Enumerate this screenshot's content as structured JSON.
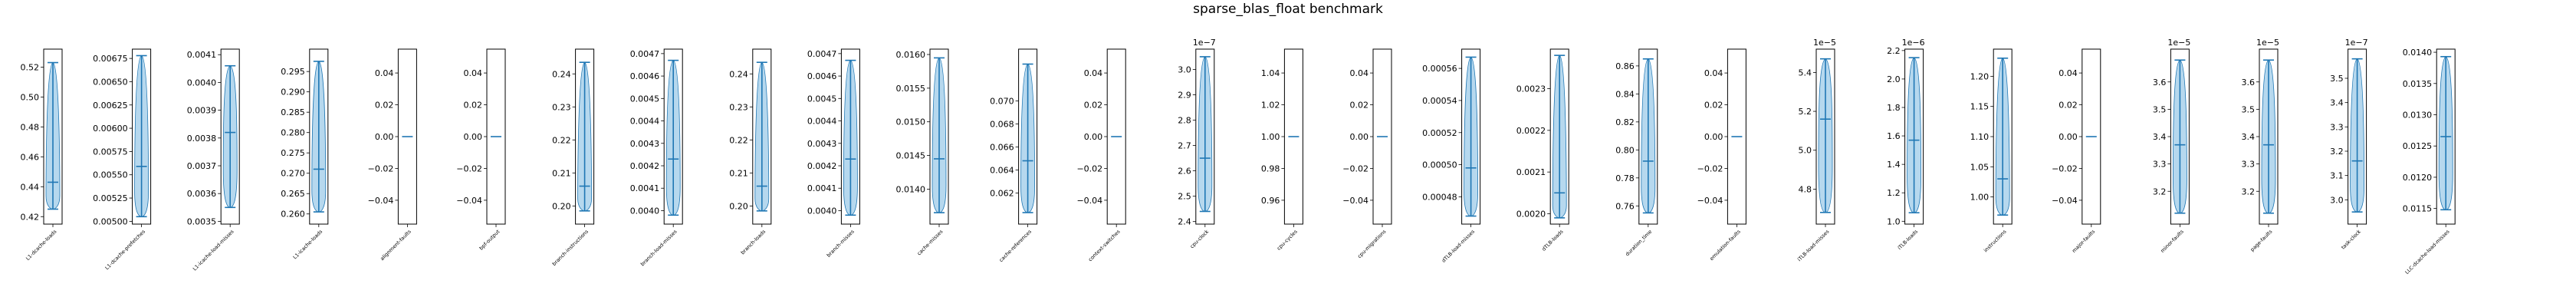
{
  "figure_title": "sparse_blas_float benchmark",
  "colors": {
    "violin_fill": "#aed4ec",
    "violin_edge": "#1f77b4",
    "line": "#1f77b4",
    "axes": "#000000"
  },
  "chart_data": [
    {
      "type": "violin",
      "label": "L1-dcache-loads",
      "ylim": [
        0.415,
        0.532
      ],
      "ticks": [
        0.42,
        0.44,
        0.46,
        0.48,
        0.5,
        0.52
      ],
      "tick_labels": [
        "0.42",
        "0.44",
        "0.46",
        "0.48",
        "0.50",
        "0.52"
      ],
      "exponent": "",
      "min": 0.425,
      "max": 0.523,
      "median": 0.443
    },
    {
      "type": "violin",
      "label": "L1-dcache-prefetches",
      "ylim": [
        0.00497,
        0.00685
      ],
      "ticks": [
        0.005,
        0.00525,
        0.0055,
        0.00575,
        0.006,
        0.00625,
        0.0065,
        0.00675
      ],
      "tick_labels": [
        "0.00500",
        "0.00525",
        "0.00550",
        "0.00575",
        "0.00600",
        "0.00625",
        "0.00650",
        "0.00675"
      ],
      "exponent": "",
      "min": 0.00505,
      "max": 0.00678,
      "median": 0.00559
    },
    {
      "type": "violin",
      "label": "L1-icache-load-misses",
      "ylim": [
        0.00349,
        0.00412
      ],
      "ticks": [
        0.0035,
        0.0036,
        0.0037,
        0.0038,
        0.0039,
        0.004,
        0.0041
      ],
      "tick_labels": [
        "0.0035",
        "0.0036",
        "0.0037",
        "0.0038",
        "0.0039",
        "0.0040",
        "0.0041"
      ],
      "exponent": "",
      "min": 0.00355,
      "max": 0.00406,
      "median": 0.00382
    },
    {
      "type": "violin",
      "label": "L1-icache-loads",
      "ylim": [
        0.2575,
        0.3005
      ],
      "ticks": [
        0.26,
        0.265,
        0.27,
        0.275,
        0.28,
        0.285,
        0.29,
        0.295
      ],
      "tick_labels": [
        "0.260",
        "0.265",
        "0.270",
        "0.275",
        "0.280",
        "0.285",
        "0.290",
        "0.295"
      ],
      "exponent": "",
      "min": 0.2605,
      "max": 0.2975,
      "median": 0.271
    },
    {
      "type": "violin",
      "label": "alignment-faults",
      "ylim": [
        -0.055,
        0.055
      ],
      "ticks": [
        -0.04,
        -0.02,
        0.0,
        0.02,
        0.04
      ],
      "tick_labels": [
        "−0.04",
        "−0.02",
        "0.00",
        "0.02",
        "0.04"
      ],
      "exponent": "",
      "min": 0.0,
      "max": 0.0,
      "median": 0.0
    },
    {
      "type": "violin",
      "label": "bpf-output",
      "ylim": [
        -0.055,
        0.055
      ],
      "ticks": [
        -0.04,
        -0.02,
        0.0,
        0.02,
        0.04
      ],
      "tick_labels": [
        "−0.04",
        "−0.02",
        "0.00",
        "0.02",
        "0.04"
      ],
      "exponent": "",
      "min": 0.0,
      "max": 0.0,
      "median": 0.0
    },
    {
      "type": "violin",
      "label": "branch-instructions",
      "ylim": [
        0.1945,
        0.2475
      ],
      "ticks": [
        0.2,
        0.21,
        0.22,
        0.23,
        0.24
      ],
      "tick_labels": [
        "0.20",
        "0.21",
        "0.22",
        "0.23",
        "0.24"
      ],
      "exponent": "",
      "min": 0.1985,
      "max": 0.2435,
      "median": 0.206
    },
    {
      "type": "violin",
      "label": "branch-load-misses",
      "ylim": [
        0.00394,
        0.00472
      ],
      "ticks": [
        0.004,
        0.0041,
        0.0042,
        0.0043,
        0.0044,
        0.0045,
        0.0046,
        0.0047
      ],
      "tick_labels": [
        "0.0040",
        "0.0041",
        "0.0042",
        "0.0043",
        "0.0044",
        "0.0045",
        "0.0046",
        "0.0047"
      ],
      "exponent": "",
      "min": 0.00398,
      "max": 0.00467,
      "median": 0.00423
    },
    {
      "type": "violin",
      "label": "branch-loads",
      "ylim": [
        0.1945,
        0.2475
      ],
      "ticks": [
        0.2,
        0.21,
        0.22,
        0.23,
        0.24
      ],
      "tick_labels": [
        "0.20",
        "0.21",
        "0.22",
        "0.23",
        "0.24"
      ],
      "exponent": "",
      "min": 0.1985,
      "max": 0.2435,
      "median": 0.206
    },
    {
      "type": "violin",
      "label": "branch-misses",
      "ylim": [
        0.00394,
        0.00472
      ],
      "ticks": [
        0.004,
        0.0041,
        0.0042,
        0.0043,
        0.0044,
        0.0045,
        0.0046,
        0.0047
      ],
      "tick_labels": [
        "0.0040",
        "0.0041",
        "0.0042",
        "0.0043",
        "0.0044",
        "0.0045",
        "0.0046",
        "0.0047"
      ],
      "exponent": "",
      "min": 0.00398,
      "max": 0.00467,
      "median": 0.00423
    },
    {
      "type": "violin",
      "label": "cache-misses",
      "ylim": [
        0.01348,
        0.01608
      ],
      "ticks": [
        0.014,
        0.0145,
        0.015,
        0.0155,
        0.016
      ],
      "tick_labels": [
        "0.0140",
        "0.0145",
        "0.0150",
        "0.0155",
        "0.0160"
      ],
      "exponent": "",
      "min": 0.01365,
      "max": 0.01595,
      "median": 0.01445
    },
    {
      "type": "violin",
      "label": "cache-references",
      "ylim": [
        0.0593,
        0.0745
      ],
      "ticks": [
        0.062,
        0.064,
        0.066,
        0.068,
        0.07
      ],
      "tick_labels": [
        "0.062",
        "0.064",
        "0.066",
        "0.068",
        "0.070"
      ],
      "exponent": "",
      "min": 0.0603,
      "max": 0.0732,
      "median": 0.0648
    },
    {
      "type": "violin",
      "label": "context-switches",
      "ylim": [
        -0.055,
        0.055
      ],
      "ticks": [
        -0.04,
        -0.02,
        0.0,
        0.02,
        0.04
      ],
      "tick_labels": [
        "−0.04",
        "−0.02",
        "0.00",
        "0.02",
        "0.04"
      ],
      "exponent": "",
      "min": 0.0,
      "max": 0.0,
      "median": 0.0
    },
    {
      "type": "violin",
      "label": "cpu-clock",
      "ylim": [
        2.39,
        3.08
      ],
      "ticks": [
        2.4,
        2.5,
        2.6,
        2.7,
        2.8,
        2.9,
        3.0
      ],
      "tick_labels": [
        "2.4",
        "2.5",
        "2.6",
        "2.7",
        "2.8",
        "2.9",
        "3.0"
      ],
      "exponent": "1e−7",
      "min": 2.44,
      "max": 3.05,
      "median": 2.65
    },
    {
      "type": "violin",
      "label": "cpu-cycles",
      "ylim": [
        0.945,
        1.055
      ],
      "ticks": [
        0.96,
        0.98,
        1.0,
        1.02,
        1.04
      ],
      "tick_labels": [
        "0.96",
        "0.98",
        "1.00",
        "1.02",
        "1.04"
      ],
      "exponent": "",
      "min": 1.0,
      "max": 1.0,
      "median": 1.0
    },
    {
      "type": "violin",
      "label": "cpu-migrations",
      "ylim": [
        -0.055,
        0.055
      ],
      "ticks": [
        -0.04,
        -0.02,
        0.0,
        0.02,
        0.04
      ],
      "tick_labels": [
        "−0.04",
        "−0.02",
        "0.00",
        "0.02",
        "0.04"
      ],
      "exponent": "",
      "min": 0.0,
      "max": 0.0,
      "median": 0.0
    },
    {
      "type": "violin",
      "label": "dTLB-load-misses",
      "ylim": [
        0.000463,
        0.000572
      ],
      "ticks": [
        0.00048,
        0.0005,
        0.00052,
        0.00054,
        0.00056
      ],
      "tick_labels": [
        "0.00048",
        "0.00050",
        "0.00052",
        "0.00054",
        "0.00056"
      ],
      "exponent": "",
      "min": 0.000468,
      "max": 0.000567,
      "median": 0.000498
    },
    {
      "type": "violin",
      "label": "dTLB-loads",
      "ylim": [
        0.001975,
        0.002395
      ],
      "ticks": [
        0.002,
        0.0021,
        0.0022,
        0.0023
      ],
      "tick_labels": [
        "0.0020",
        "0.0021",
        "0.0022",
        "0.0023"
      ],
      "exponent": "",
      "min": 0.00199,
      "max": 0.00238,
      "median": 0.00205
    },
    {
      "type": "violin",
      "label": "duration_time",
      "ylim": [
        0.747,
        0.872
      ],
      "ticks": [
        0.76,
        0.78,
        0.8,
        0.82,
        0.84,
        0.86
      ],
      "tick_labels": [
        "0.76",
        "0.78",
        "0.80",
        "0.82",
        "0.84",
        "0.86"
      ],
      "exponent": "",
      "min": 0.755,
      "max": 0.865,
      "median": 0.792
    },
    {
      "type": "violin",
      "label": "emulation-faults",
      "ylim": [
        -0.055,
        0.055
      ],
      "ticks": [
        -0.04,
        -0.02,
        0.0,
        0.02,
        0.04
      ],
      "tick_labels": [
        "−0.04",
        "−0.02",
        "0.00",
        "0.02",
        "0.04"
      ],
      "exponent": "",
      "min": 0.0,
      "max": 0.0,
      "median": 0.0
    },
    {
      "type": "violin",
      "label": "iTLB-load-misses",
      "ylim": [
        4.62,
        5.52
      ],
      "ticks": [
        4.8,
        5.0,
        5.2,
        5.4
      ],
      "tick_labels": [
        "4.8",
        "5.0",
        "5.2",
        "5.4"
      ],
      "exponent": "1e−5",
      "min": 4.68,
      "max": 5.47,
      "median": 5.16
    },
    {
      "type": "violin",
      "label": "iTLB-loads",
      "ylim": [
        0.98,
        2.21
      ],
      "ticks": [
        1.0,
        1.2,
        1.4,
        1.6,
        1.8,
        2.0,
        2.2
      ],
      "tick_labels": [
        "1.0",
        "1.2",
        "1.4",
        "1.6",
        "1.8",
        "2.0",
        "2.2"
      ],
      "exponent": "1e−6",
      "min": 1.06,
      "max": 2.15,
      "median": 1.57
    },
    {
      "type": "violin",
      "label": "instructions",
      "ylim": [
        0.955,
        1.245
      ],
      "ticks": [
        1.0,
        1.05,
        1.1,
        1.15,
        1.2
      ],
      "tick_labels": [
        "1.00",
        "1.05",
        "1.10",
        "1.15",
        "1.20"
      ],
      "exponent": "",
      "min": 0.97,
      "max": 1.23,
      "median": 1.03
    },
    {
      "type": "violin",
      "label": "major-faults",
      "ylim": [
        -0.055,
        0.055
      ],
      "ticks": [
        -0.04,
        -0.02,
        0.0,
        0.02,
        0.04
      ],
      "tick_labels": [
        "−0.04",
        "−0.02",
        "0.00",
        "0.02",
        "0.04"
      ],
      "exponent": "",
      "min": 0.0,
      "max": 0.0,
      "median": 0.0
    },
    {
      "type": "violin",
      "label": "minor-faults",
      "ylim": [
        3.08,
        3.72
      ],
      "ticks": [
        3.2,
        3.3,
        3.4,
        3.5,
        3.6
      ],
      "tick_labels": [
        "3.2",
        "3.3",
        "3.4",
        "3.5",
        "3.6"
      ],
      "exponent": "1e−5",
      "min": 3.12,
      "max": 3.68,
      "median": 3.37
    },
    {
      "type": "violin",
      "label": "page-faults",
      "ylim": [
        3.08,
        3.72
      ],
      "ticks": [
        3.2,
        3.3,
        3.4,
        3.5,
        3.6
      ],
      "tick_labels": [
        "3.2",
        "3.3",
        "3.4",
        "3.5",
        "3.6"
      ],
      "exponent": "1e−5",
      "min": 3.12,
      "max": 3.68,
      "median": 3.37
    },
    {
      "type": "violin",
      "label": "task-clock",
      "ylim": [
        2.9,
        3.62
      ],
      "ticks": [
        3.0,
        3.1,
        3.2,
        3.3,
        3.4,
        3.5
      ],
      "tick_labels": [
        "3.0",
        "3.1",
        "3.2",
        "3.3",
        "3.4",
        "3.5"
      ],
      "exponent": "1e−7",
      "min": 2.95,
      "max": 3.58,
      "median": 3.16
    },
    {
      "type": "violin",
      "label": "LLC-dcache-load-misses",
      "ylim": [
        0.01125,
        0.01405
      ],
      "ticks": [
        0.0115,
        0.012,
        0.0125,
        0.013,
        0.0135,
        0.014
      ],
      "tick_labels": [
        "0.0115",
        "0.0120",
        "0.0125",
        "0.0130",
        "0.0135",
        "0.0140"
      ],
      "exponent": "",
      "min": 0.01148,
      "max": 0.01393,
      "median": 0.01265
    }
  ]
}
